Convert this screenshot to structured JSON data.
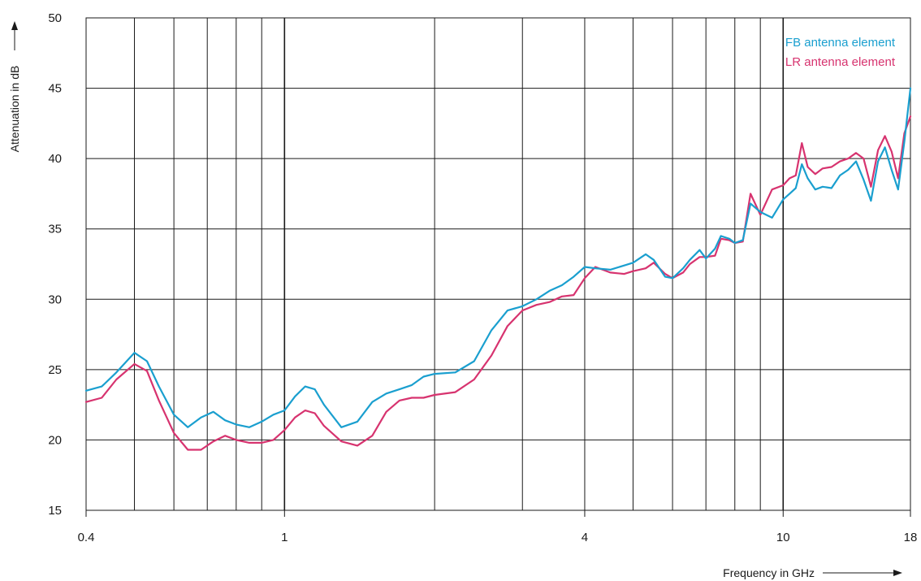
{
  "chart_data": {
    "type": "line",
    "xlabel": "Frequency in GHz",
    "ylabel": "Attenuation in dB",
    "x_scale": "log",
    "xlim": [
      0.4,
      18
    ],
    "ylim": [
      15,
      50
    ],
    "x_tick_labels": [
      {
        "value": 0.4,
        "label": "0.4"
      },
      {
        "value": 1,
        "label": "1"
      },
      {
        "value": 4,
        "label": "4"
      },
      {
        "value": 10,
        "label": "10"
      },
      {
        "value": 18,
        "label": "18"
      }
    ],
    "y_ticks": [
      15,
      20,
      25,
      30,
      35,
      40,
      45,
      50
    ],
    "grid": true,
    "legend_position": "top-right",
    "series": [
      {
        "name": "FB antenna element",
        "color": "#1a9fcf",
        "x": [
          0.4,
          0.43,
          0.46,
          0.5,
          0.53,
          0.56,
          0.6,
          0.64,
          0.68,
          0.72,
          0.76,
          0.8,
          0.85,
          0.9,
          0.95,
          1.0,
          1.05,
          1.1,
          1.15,
          1.2,
          1.3,
          1.4,
          1.5,
          1.6,
          1.7,
          1.8,
          1.9,
          2.0,
          2.2,
          2.4,
          2.6,
          2.8,
          3.0,
          3.2,
          3.4,
          3.6,
          3.8,
          4.0,
          4.2,
          4.5,
          4.8,
          5.0,
          5.3,
          5.5,
          5.8,
          6.0,
          6.3,
          6.5,
          6.8,
          7.0,
          7.3,
          7.5,
          7.8,
          8.0,
          8.3,
          8.6,
          9.0,
          9.5,
          10.0,
          10.3,
          10.6,
          10.9,
          11.2,
          11.6,
          12.0,
          12.5,
          13.0,
          13.5,
          14.0,
          14.5,
          15.0,
          15.5,
          16.0,
          16.5,
          17.0,
          17.5,
          18.0
        ],
        "values": [
          23.5,
          23.8,
          24.8,
          26.2,
          25.6,
          23.8,
          21.8,
          20.9,
          21.6,
          22.0,
          21.4,
          21.1,
          20.9,
          21.3,
          21.8,
          22.1,
          23.1,
          23.8,
          23.6,
          22.5,
          20.9,
          21.3,
          22.7,
          23.3,
          23.6,
          23.9,
          24.5,
          24.7,
          24.8,
          25.6,
          27.8,
          29.2,
          29.5,
          30.0,
          30.6,
          31.0,
          31.6,
          32.3,
          32.2,
          32.1,
          32.4,
          32.6,
          33.2,
          32.8,
          31.6,
          31.5,
          32.2,
          32.8,
          33.5,
          32.9,
          33.6,
          34.5,
          34.3,
          34.0,
          34.2,
          36.8,
          36.2,
          35.8,
          37.1,
          37.5,
          37.9,
          39.6,
          38.6,
          37.8,
          38.0,
          37.9,
          38.8,
          39.2,
          39.8,
          38.5,
          37.0,
          39.8,
          40.8,
          39.2,
          37.8,
          41.2,
          45.0
        ]
      },
      {
        "name": "LR antenna element",
        "color": "#d7336f",
        "x": [
          0.4,
          0.43,
          0.46,
          0.5,
          0.53,
          0.56,
          0.6,
          0.64,
          0.68,
          0.72,
          0.76,
          0.8,
          0.85,
          0.9,
          0.95,
          1.0,
          1.05,
          1.1,
          1.15,
          1.2,
          1.3,
          1.4,
          1.5,
          1.6,
          1.7,
          1.8,
          1.9,
          2.0,
          2.2,
          2.4,
          2.6,
          2.8,
          3.0,
          3.2,
          3.4,
          3.6,
          3.8,
          4.0,
          4.2,
          4.5,
          4.8,
          5.0,
          5.3,
          5.5,
          5.8,
          6.0,
          6.3,
          6.5,
          6.8,
          7.0,
          7.3,
          7.5,
          7.8,
          8.0,
          8.3,
          8.6,
          9.0,
          9.5,
          10.0,
          10.3,
          10.6,
          10.9,
          11.2,
          11.6,
          12.0,
          12.5,
          13.0,
          13.5,
          14.0,
          14.5,
          15.0,
          15.5,
          16.0,
          16.5,
          17.0,
          17.5,
          18.0
        ],
        "values": [
          22.7,
          23.0,
          24.3,
          25.4,
          24.9,
          22.8,
          20.5,
          19.3,
          19.3,
          19.9,
          20.3,
          20.0,
          19.8,
          19.8,
          20.0,
          20.7,
          21.6,
          22.1,
          21.9,
          21.0,
          19.9,
          19.6,
          20.3,
          22.0,
          22.8,
          23.0,
          23.0,
          23.2,
          23.4,
          24.3,
          26.0,
          28.1,
          29.2,
          29.6,
          29.8,
          30.2,
          30.3,
          31.5,
          32.3,
          31.9,
          31.8,
          32.0,
          32.2,
          32.6,
          31.8,
          31.5,
          31.9,
          32.5,
          33.0,
          33.0,
          33.1,
          34.3,
          34.2,
          34.0,
          34.1,
          37.5,
          36.0,
          37.8,
          38.1,
          38.6,
          38.8,
          41.1,
          39.4,
          38.9,
          39.3,
          39.4,
          39.8,
          40.0,
          40.4,
          40.0,
          38.0,
          40.6,
          41.6,
          40.5,
          38.6,
          41.8,
          43.0
        ]
      }
    ]
  }
}
